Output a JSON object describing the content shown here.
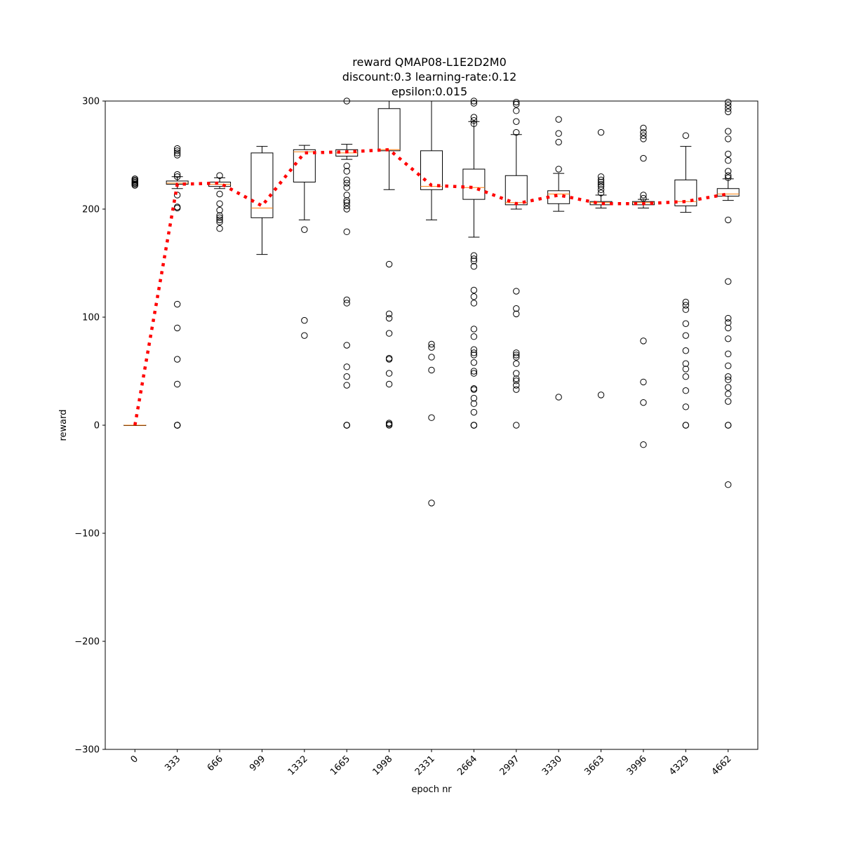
{
  "chart_data": {
    "type": "box",
    "title_lines": [
      "reward QMAP08-L1E2D2M0",
      "discount:0.3 learning-rate:0.12",
      "epsilon:0.015"
    ],
    "xlabel": "epoch nr",
    "ylabel": "reward",
    "ylim": [
      -300,
      300
    ],
    "yticks": [
      -300,
      -200,
      -100,
      0,
      100,
      200,
      300
    ],
    "ytick_labels": [
      "−300",
      "−200",
      "−100",
      "0",
      "100",
      "200",
      "300"
    ],
    "categories": [
      "0",
      "333",
      "666",
      "999",
      "1332",
      "1665",
      "1998",
      "2331",
      "2664",
      "2997",
      "3330",
      "3663",
      "3996",
      "4329",
      "4662"
    ],
    "colors": {
      "box": "#000000",
      "median": "#ff7f0e",
      "mean_line": "#ff0000"
    },
    "boxes": [
      {
        "q1": 0,
        "median": 0,
        "q3": 0,
        "whislo": 0,
        "whishi": 0,
        "mean": 0,
        "fliers": [
          222,
          223,
          224,
          225,
          226,
          227,
          228
        ]
      },
      {
        "q1": 223,
        "median": 224,
        "q3": 226,
        "whislo": 219,
        "whishi": 230,
        "mean": 223,
        "fliers": [
          0,
          0,
          0,
          38,
          61,
          90,
          112,
          201,
          202,
          213,
          230,
          232,
          250,
          252,
          254,
          256
        ]
      },
      {
        "q1": 221,
        "median": 223,
        "q3": 225,
        "whislo": 219,
        "whishi": 229,
        "mean": 224,
        "fliers": [
          182,
          188,
          190,
          192,
          194,
          199,
          205,
          214,
          231
        ]
      },
      {
        "q1": 192,
        "median": 201,
        "q3": 252,
        "whislo": 158,
        "whishi": 258,
        "mean": 203,
        "fliers": []
      },
      {
        "q1": 225,
        "median": 253,
        "q3": 255,
        "whislo": 190,
        "whishi": 259,
        "mean": 252,
        "fliers": [
          83,
          97,
          181
        ]
      },
      {
        "q1": 249,
        "median": 252,
        "q3": 255,
        "whislo": 246,
        "whishi": 260,
        "mean": 253,
        "fliers": [
          0,
          0,
          0,
          37,
          45,
          54,
          74,
          113,
          116,
          179,
          200,
          203,
          206,
          208,
          213,
          220,
          224,
          227,
          235,
          240,
          300
        ]
      },
      {
        "q1": 254,
        "median": 255,
        "q3": 293,
        "whislo": 218,
        "whishi": 300,
        "mean": 255,
        "fliers": [
          0,
          1,
          2,
          38,
          48,
          61,
          62,
          85,
          99,
          103,
          149
        ]
      },
      {
        "q1": 218,
        "median": 221,
        "q3": 254,
        "whislo": 190,
        "whishi": 300,
        "mean": 222,
        "fliers": [
          -72,
          7,
          51,
          63,
          72,
          75
        ]
      },
      {
        "q1": 209,
        "median": 220,
        "q3": 237,
        "whislo": 174,
        "whishi": 281,
        "mean": 220,
        "fliers": [
          0,
          0,
          0,
          12,
          20,
          25,
          33,
          34,
          48,
          50,
          58,
          65,
          67,
          70,
          82,
          89,
          113,
          119,
          125,
          147,
          152,
          154,
          157,
          279,
          282,
          285,
          298,
          300
        ]
      },
      {
        "q1": 204,
        "median": 206,
        "q3": 231,
        "whislo": 200,
        "whishi": 269,
        "mean": 205,
        "fliers": [
          0,
          33,
          37,
          41,
          43,
          48,
          57,
          63,
          65,
          67,
          103,
          108,
          124,
          271,
          281,
          291,
          297,
          299
        ]
      },
      {
        "q1": 205,
        "median": 214,
        "q3": 217,
        "whislo": 198,
        "whishi": 233,
        "mean": 213,
        "fliers": [
          26,
          237,
          262,
          270,
          283
        ]
      },
      {
        "q1": 204,
        "median": 206,
        "q3": 207,
        "whislo": 201,
        "whishi": 213,
        "mean": 205,
        "fliers": [
          28,
          215,
          218,
          221,
          223,
          225,
          227,
          230,
          271
        ]
      },
      {
        "q1": 204,
        "median": 206,
        "q3": 207,
        "whislo": 201,
        "whishi": 209,
        "mean": 205,
        "fliers": [
          -18,
          21,
          40,
          78,
          210,
          213,
          247,
          265,
          268,
          271,
          275
        ]
      },
      {
        "q1": 203,
        "median": 207,
        "q3": 227,
        "whislo": 197,
        "whishi": 258,
        "mean": 207,
        "fliers": [
          0,
          0,
          17,
          32,
          45,
          52,
          57,
          69,
          83,
          94,
          107,
          111,
          114,
          268
        ]
      },
      {
        "q1": 212,
        "median": 214,
        "q3": 219,
        "whislo": 208,
        "whishi": 228,
        "mean": 214,
        "fliers": [
          -55,
          0,
          0,
          22,
          29,
          35,
          42,
          45,
          55,
          66,
          80,
          90,
          95,
          99,
          133,
          190,
          229,
          231,
          235,
          245,
          251,
          265,
          272,
          290,
          293,
          296,
          299
        ]
      }
    ]
  }
}
